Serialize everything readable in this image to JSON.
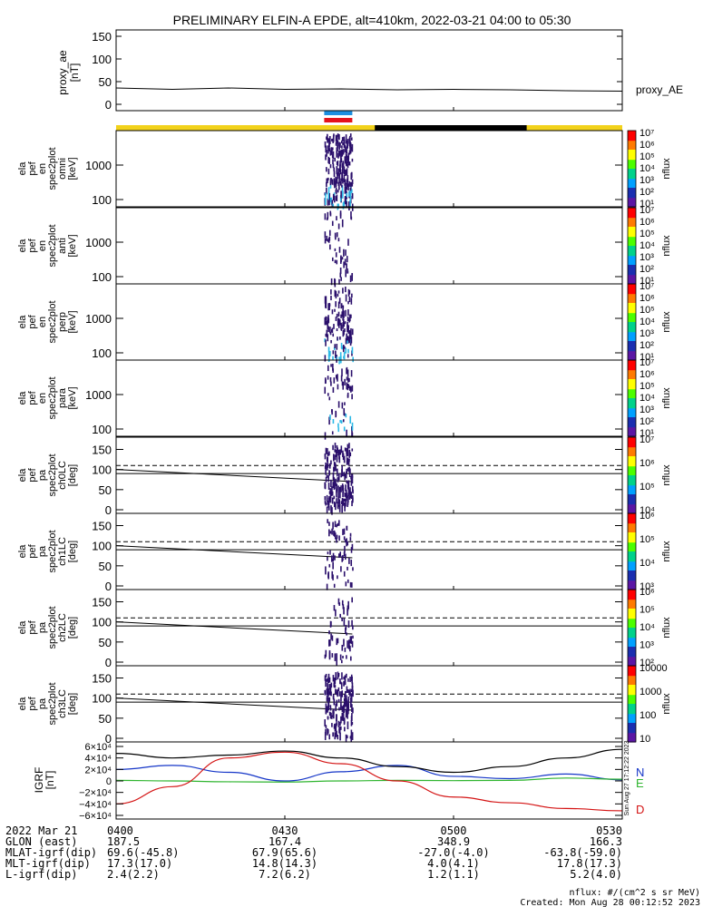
{
  "title": "PRELIMINARY ELFIN-A EPDE, alt=410km, 2022-03-21 04:00 to 05:30",
  "colors": {
    "sun": "#f2d21b",
    "shadow": "#000000",
    "bar_blue": "#1d8fe0",
    "bar_red": "#e5131b",
    "spec": "#2a0f6b",
    "spec_hi": "#2cb9e6",
    "grf_n": "#1536c8",
    "grf_e": "#2fb52f",
    "grf_d": "#d41414"
  },
  "panels": {
    "ae": {
      "ylabel": [
        "proxy_ae",
        "[nT]"
      ],
      "ticks": [
        "150",
        "100",
        "50",
        "0"
      ],
      "series_label": "proxy_AE"
    },
    "spec": [
      {
        "ylabel": [
          "ela",
          "pef",
          "en",
          "spec2plot",
          "omni",
          "[keV]"
        ],
        "ticks": [
          "1000",
          "100"
        ],
        "cb_ticks": [
          "10⁷",
          "10⁶",
          "10⁵",
          "10⁴",
          "10³",
          "10²",
          "10¹"
        ],
        "cb_label": "nflux"
      },
      {
        "ylabel": [
          "ela",
          "pef",
          "en",
          "spec2plot",
          "anti",
          "[keV]"
        ],
        "ticks": [
          "1000",
          "100"
        ],
        "cb_ticks": [
          "10⁷",
          "10⁶",
          "10⁵",
          "10⁴",
          "10³",
          "10²",
          "10¹"
        ],
        "cb_label": "nflux"
      },
      {
        "ylabel": [
          "ela",
          "pef",
          "en",
          "spec2plot",
          "perp",
          "[keV]"
        ],
        "ticks": [
          "1000",
          "100"
        ],
        "cb_ticks": [
          "10⁷",
          "10⁶",
          "10⁵",
          "10⁴",
          "10³",
          "10²",
          "10¹"
        ],
        "cb_label": "nflux"
      },
      {
        "ylabel": [
          "ela",
          "pef",
          "en",
          "spec2plot",
          "para",
          "[keV]"
        ],
        "ticks": [
          "1000",
          "100"
        ],
        "cb_ticks": [
          "10⁷",
          "10⁶",
          "10⁵",
          "10⁴",
          "10³",
          "10²",
          "10¹"
        ],
        "cb_label": "nflux"
      }
    ],
    "pa": [
      {
        "ylabel": [
          "ela",
          "pef",
          "pa",
          "spec2plot",
          "ch0LC",
          "[deg]"
        ],
        "ticks": [
          "150",
          "100",
          "50",
          "0"
        ],
        "cb_ticks": [
          "10⁷",
          "10⁶",
          "10⁵",
          "10⁴"
        ],
        "cb_label": "nflux"
      },
      {
        "ylabel": [
          "ela",
          "pef",
          "pa",
          "spec2plot",
          "ch1LC",
          "[deg]"
        ],
        "ticks": [
          "150",
          "100",
          "50",
          "0"
        ],
        "cb_ticks": [
          "10⁶",
          "10⁵",
          "10⁴",
          "10³"
        ],
        "cb_label": "nflux"
      },
      {
        "ylabel": [
          "ela",
          "pef",
          "pa",
          "spec2plot",
          "ch2LC",
          "[deg]"
        ],
        "ticks": [
          "150",
          "100",
          "50",
          "0"
        ],
        "cb_ticks": [
          "10⁶",
          "10⁵",
          "10⁴",
          "10³",
          "10²"
        ],
        "cb_label": "nflux"
      },
      {
        "ylabel": [
          "ela",
          "pef",
          "pa",
          "spec2plot",
          "ch3LC",
          "[deg]"
        ],
        "ticks": [
          "150",
          "100",
          "50",
          "0"
        ],
        "cb_ticks": [
          "10000",
          "1000",
          "100",
          "10"
        ],
        "cb_label": "nflux"
      }
    ],
    "grf": {
      "ylabel": [
        "IGRF",
        "[nT]"
      ],
      "ticks": [
        "6×10⁴",
        "4×10⁴",
        "2×10⁴",
        "0",
        "−2×10⁴",
        "−4×10⁴",
        "−6×10⁴"
      ],
      "labels": {
        "N": "N",
        "E": "E",
        "D": "D"
      },
      "side_note": "Sun Aug 27 17:12:22 2023"
    }
  },
  "chart_data": {
    "type": "line",
    "xlabel": "",
    "x_ticks": [
      "0400",
      "0430",
      "0500",
      "0530"
    ],
    "xlim": [
      "04:00",
      "05:30"
    ],
    "proxy_ae": {
      "name": "proxy_AE",
      "ylim": [
        0,
        150
      ],
      "x": [
        "04:00",
        "04:10",
        "04:20",
        "04:30",
        "04:40",
        "04:50",
        "05:00",
        "05:10",
        "05:20",
        "05:30"
      ],
      "values": [
        36,
        33,
        36,
        33,
        34,
        32,
        33,
        32,
        30,
        29
      ]
    },
    "spectrograms": {
      "energy_ylim_keV": [
        60,
        7000
      ],
      "pitch_ylim_deg": [
        0,
        180
      ],
      "active_interval": [
        "04:37",
        "04:42"
      ],
      "loss_cone_dashed_deg": 110,
      "perp_line_deg": 90,
      "loss_cone_solid_deg_start": 100,
      "loss_cone_solid_deg_end": 70
    },
    "igrf": {
      "ylim": [
        -60000,
        60000
      ],
      "x": [
        "04:00",
        "04:10",
        "04:20",
        "04:30",
        "04:40",
        "04:50",
        "05:00",
        "05:10",
        "05:20",
        "05:30"
      ],
      "series": [
        {
          "name": "N",
          "values": [
            20000,
            27000,
            15000,
            0,
            16000,
            27000,
            8000,
            4000,
            12000,
            2000
          ]
        },
        {
          "name": "E",
          "values": [
            1000,
            0,
            -1500,
            -2000,
            0,
            1000,
            500,
            1000,
            5000,
            3000
          ]
        },
        {
          "name": "D",
          "values": [
            -40000,
            -10000,
            40000,
            50000,
            30000,
            0,
            -28000,
            -38000,
            -48000,
            -52000
          ]
        },
        {
          "name": "",
          "values": [
            48000,
            40000,
            45000,
            52000,
            40000,
            25000,
            15000,
            25000,
            40000,
            55000
          ]
        }
      ]
    }
  },
  "orbit_table": {
    "rows": [
      {
        "label": "2022 Mar 21",
        "values": [
          "0400",
          "0430",
          "0500",
          "0530"
        ]
      },
      {
        "label": "GLON (east)",
        "values": [
          "187.5",
          "167.4",
          "348.9",
          "166.3"
        ]
      },
      {
        "label": "MLAT-igrf(dip)",
        "values": [
          "69.6(-45.8)",
          "67.9(65.6)",
          "-27.0(-4.0)",
          "-63.8(-59.0)"
        ]
      },
      {
        "label": "MLT-igrf(dip)",
        "values": [
          "17.3(17.0)",
          "14.8(14.3)",
          "4.0(4.1)",
          "17.8(17.3)"
        ]
      },
      {
        "label": "L-igrf(dip)",
        "values": [
          "2.4(2.2)",
          "7.2(6.2)",
          "1.2(1.1)",
          "5.2(4.0)"
        ]
      }
    ],
    "footer_units": "nflux: #/(cm^2 s sr MeV)",
    "footer_created": "Created: Mon Aug 28 00:12:52 2023"
  }
}
